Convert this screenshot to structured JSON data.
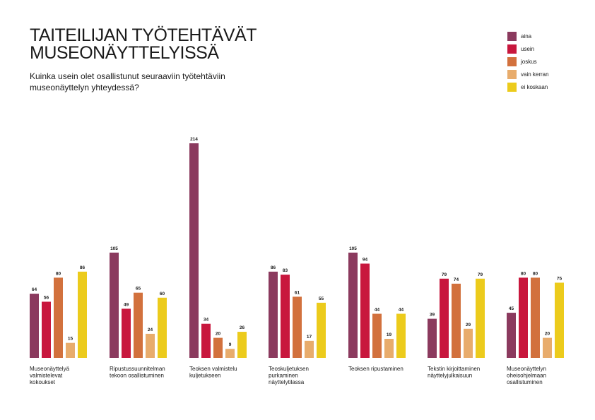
{
  "header": {
    "title_line1": "TAITEILIJAN TYÖTEHTÄVÄT",
    "title_line2": "MUSEONÄYTTELYISSÄ",
    "subtitle_line1": "Kuinka usein olet osallistunut seuraaviin työtehtäviin",
    "subtitle_line2": "museonäyttelyn yhteydessä?"
  },
  "chart_data": {
    "type": "bar",
    "title": "TAITEILIJAN TYÖTEHTÄVÄT MUSEONÄYTTELYISSÄ",
    "subtitle": "Kuinka usein olet osallistunut seuraaviin työtehtäviin museonäyttelyn yhteydessä?",
    "legend_position": "top-right",
    "grid": false,
    "ylim": [
      0,
      214
    ],
    "categories": [
      [
        "Museonäyttelyä",
        "valmistelevat",
        "kokoukset"
      ],
      [
        "Ripustussuunnitelman",
        "tekoon osallistuminen"
      ],
      [
        "Teoksen valmistelu",
        "kuljetukseen"
      ],
      [
        "Teoskuljetuksen",
        "purkaminen",
        "näyttelytilassa"
      ],
      [
        "Teoksen ripustaminen"
      ],
      [
        "Tekstin kirjoittaminen",
        "näyttelyjulkaisuun"
      ],
      [
        "Museonäyttelyn",
        "oheisohjelmaan",
        "osallistuminen"
      ]
    ],
    "series": [
      {
        "name": "aina",
        "color": "#8b3a5e",
        "values": [
          64,
          105,
          214,
          86,
          105,
          39,
          45
        ]
      },
      {
        "name": "usein",
        "color": "#c8173d",
        "values": [
          56,
          49,
          34,
          83,
          94,
          79,
          80
        ]
      },
      {
        "name": "joskus",
        "color": "#d2713d",
        "values": [
          80,
          65,
          20,
          61,
          44,
          74,
          80
        ]
      },
      {
        "name": "vain kerran",
        "color": "#e8ac6c",
        "values": [
          15,
          24,
          9,
          17,
          19,
          29,
          20
        ]
      },
      {
        "name": "ei koskaan",
        "color": "#eccb1c",
        "values": [
          86,
          60,
          26,
          55,
          44,
          79,
          75
        ]
      }
    ]
  }
}
